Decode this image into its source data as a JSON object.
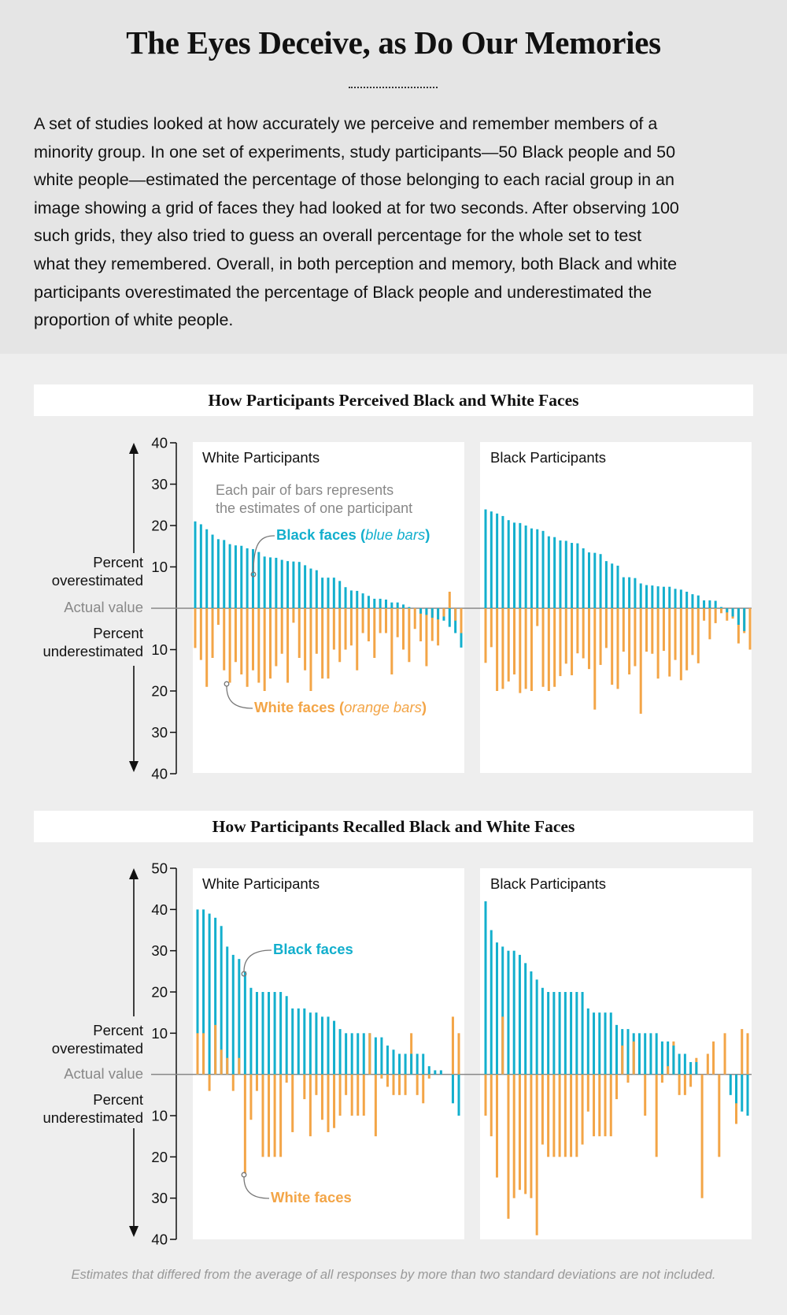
{
  "header": {
    "title": "The Eyes Deceive, as Do Our Memories",
    "intro_lines": [
      "A set of studies looked at how accurately we perceive and remember members of a",
      "minority group. In one set of experiments, study participants—50 Black people and 50",
      "white people—estimated the percentage of those belonging to each racial group in an",
      "image showing a grid of faces they had looked at for two seconds. After observing 100",
      "such grids, they also tried to guess an overall percentage for the whole set to test",
      "what they remembered. Overall, in both perception and memory, both Black and white",
      "participants overestimated the percentage of Black people and underestimated the",
      "proportion of white people."
    ]
  },
  "colors": {
    "black_faces": "#13afcd",
    "white_faces": "#f3a547",
    "baseline": "#888888"
  },
  "axis_labels": {
    "over_1": "Percent",
    "over_2": "overestimated",
    "baseline": "Actual value",
    "under_1": "Percent",
    "under_2": "underestimated"
  },
  "annotations": {
    "pair_note_1": "Each pair of bars represents",
    "pair_note_2": "the estimates of one participant",
    "black_faces": "Black faces",
    "black_faces_paren": "blue bars",
    "white_faces": "White faces",
    "white_faces_paren": "orange bars"
  },
  "footnote": "Estimates that differed from the average of all responses by more than two standard deviations are not included.",
  "chart_data": [
    {
      "type": "bar",
      "title": "How Participants Perceived Black and White Faces",
      "ylim": [
        -40,
        40
      ],
      "yticks": [
        40,
        30,
        20,
        10,
        -10,
        -20,
        -30,
        -40
      ],
      "ytick_labels": [
        "40",
        "30",
        "20",
        "10",
        "10",
        "20",
        "30",
        "40"
      ],
      "grid": false,
      "panels": [
        {
          "title": "White Participants",
          "series": [
            {
              "name": "Black faces",
              "values": [
                21,
                20.3,
                19.1,
                17.8,
                16.7,
                16.5,
                15.5,
                15.2,
                15.1,
                14.5,
                14.3,
                13.6,
                12.5,
                12.3,
                12.2,
                11.7,
                11.4,
                11.3,
                11.2,
                10.4,
                9.6,
                9.2,
                7.4,
                7.4,
                7.4,
                6.6,
                5.1,
                4.3,
                4.2,
                3.6,
                3,
                2.3,
                2.3,
                2.1,
                1.4,
                1.4,
                0.9,
                0.3,
                0,
                -1.3,
                -1.6,
                -2.3,
                -2.7,
                -3,
                -4.5,
                -6,
                -9.5
              ]
            },
            {
              "name": "White faces",
              "values": [
                -9.6,
                -12.5,
                -19,
                -12,
                -4,
                -15,
                -18,
                -13,
                -16,
                -19,
                -15,
                -18,
                -20,
                -17,
                -14,
                -11,
                -18,
                -3.5,
                -12,
                -15,
                -20,
                -11,
                -17,
                -17,
                -10,
                -13,
                -10,
                -9,
                -15,
                -6,
                -8,
                -12,
                -6,
                -6,
                -16,
                -7,
                -10,
                -13,
                -5,
                -8,
                -14,
                -7.9,
                -9,
                -2,
                4,
                -3,
                -6
              ]
            }
          ]
        },
        {
          "title": "Black Participants",
          "series": [
            {
              "name": "Black faces",
              "values": [
                23.9,
                23.4,
                22.9,
                22.3,
                21.3,
                20.7,
                20.6,
                20,
                19.3,
                19.1,
                18.7,
                17.4,
                17.2,
                16.4,
                16.3,
                15.8,
                15.7,
                14.5,
                13.5,
                13.4,
                13.1,
                11.4,
                10.8,
                10.3,
                7.5,
                7.5,
                7.3,
                6,
                5.6,
                5.5,
                5.3,
                5.2,
                5.2,
                4.7,
                4.5,
                4,
                3.4,
                3.1,
                1.9,
                1.9,
                1.8,
                0.3,
                -1,
                -2,
                -4,
                -5.5,
                -10
              ]
            },
            {
              "name": "White faces",
              "values": [
                -13.2,
                -9.4,
                -20,
                -19.5,
                -17.7,
                -16,
                -20.5,
                -19.5,
                -20,
                -4.3,
                -19,
                -20,
                -19,
                -16.4,
                -13.4,
                -16.2,
                -10.9,
                -12.1,
                -14.7,
                -24.5,
                -13.7,
                -9.6,
                -18.5,
                -19.5,
                -10.5,
                -16,
                -14,
                -25.5,
                -10.5,
                -11,
                -17,
                -10.3,
                -16.5,
                -12.5,
                -17.4,
                -15,
                -11.3,
                -13.3,
                -3,
                -7.5,
                -3.6,
                -1.2,
                -3,
                -2.5,
                -8.5,
                -6,
                -10
              ]
            }
          ]
        }
      ]
    },
    {
      "type": "bar",
      "title": "How Participants Recalled Black and White Faces",
      "ylim": [
        -40,
        50
      ],
      "yticks": [
        50,
        40,
        30,
        20,
        10,
        -10,
        -20,
        -30,
        -40
      ],
      "ytick_labels": [
        "50",
        "40",
        "30",
        "20",
        "10",
        "10",
        "20",
        "30",
        "40"
      ],
      "grid": false,
      "panels": [
        {
          "title": "White Participants",
          "series": [
            {
              "name": "Black faces",
              "values": [
                40,
                40,
                39,
                38,
                36,
                31,
                29,
                28,
                25,
                21,
                20,
                20,
                20,
                20,
                20,
                19,
                16,
                16,
                16,
                15,
                15,
                14,
                14,
                13,
                11,
                10,
                10,
                10,
                10,
                10,
                9,
                9,
                7,
                6,
                5,
                5,
                5,
                5,
                5,
                2,
                1,
                1,
                0,
                -7,
                -10
              ]
            },
            {
              "name": "White faces",
              "values": [
                10,
                10,
                -4,
                12,
                6,
                4,
                -4,
                4,
                -24,
                -11,
                -4,
                -20,
                -20,
                -20,
                -20,
                -2,
                -14,
                0,
                -6,
                -15,
                -5,
                -11,
                -14,
                -13,
                -10,
                -5,
                -10,
                -10,
                -10,
                10,
                -15,
                -1,
                -3,
                -5,
                -5,
                -5,
                10,
                -5,
                -7,
                -1,
                0,
                0,
                0,
                14,
                10
              ]
            }
          ]
        },
        {
          "title": "Black Participants",
          "series": [
            {
              "name": "Black faces",
              "values": [
                42,
                35,
                32,
                31,
                30,
                30,
                29,
                27,
                25,
                23,
                21,
                20,
                20,
                20,
                20,
                20,
                20,
                20,
                16,
                15,
                15,
                15,
                15,
                12,
                11,
                11,
                10,
                10,
                10,
                10,
                10,
                8,
                8,
                7,
                5,
                5,
                3,
                3,
                0,
                0,
                0,
                0,
                0,
                -5,
                -7,
                -9,
                -10
              ]
            },
            {
              "name": "White faces",
              "values": [
                -10,
                -15,
                -25,
                14,
                -35,
                -30,
                -28,
                -29,
                -30,
                -39,
                -17,
                -20,
                -20,
                -20,
                -20,
                -20,
                -20,
                -17,
                -9,
                -15,
                -15,
                -15,
                -15,
                -6,
                7,
                -2,
                8,
                0,
                -10,
                0,
                -20,
                -2,
                2,
                8,
                -5,
                -5,
                -3,
                4,
                -30,
                5,
                8,
                -20,
                10,
                0,
                -12,
                11,
                10
              ]
            }
          ]
        }
      ]
    }
  ]
}
